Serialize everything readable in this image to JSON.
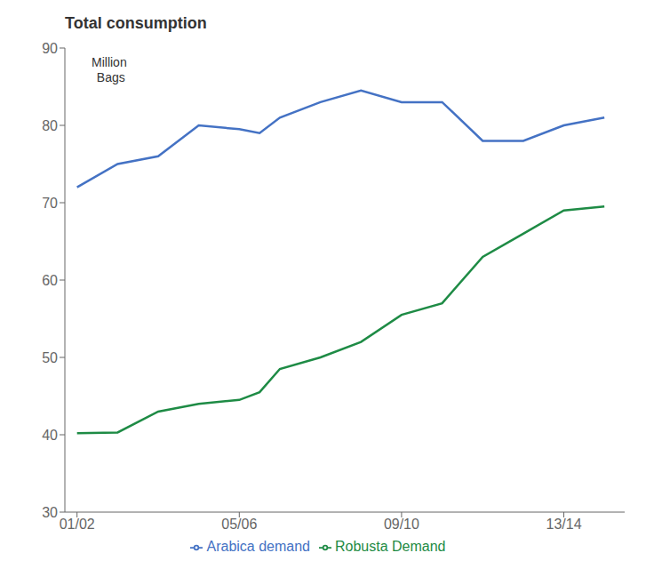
{
  "chart_data": {
    "type": "line",
    "title": "Total consumption",
    "annotations": [
      "Million\n Bags"
    ],
    "x": [
      0,
      1,
      2,
      3,
      4,
      4.5,
      5,
      6,
      7,
      8,
      9,
      10,
      11,
      12,
      13
    ],
    "series": [
      {
        "name": "Arabica demand",
        "color": "#4472C4",
        "values": [
          72,
          75,
          76,
          80,
          79.5,
          79,
          81,
          83,
          84.5,
          83,
          83,
          78,
          78,
          80,
          81
        ]
      },
      {
        "name": "Robusta Demand",
        "color": "#1E8B45",
        "values": [
          40.2,
          40.3,
          43,
          44,
          44.5,
          45.5,
          48.5,
          50,
          52,
          55.5,
          57,
          63,
          66,
          69,
          69.5
        ]
      }
    ],
    "xlim": [
      -0.3,
      13.5
    ],
    "xticks": [
      {
        "value": 0,
        "label": "01/02"
      },
      {
        "value": 4,
        "label": "05/06"
      },
      {
        "value": 8,
        "label": "09/10"
      },
      {
        "value": 12,
        "label": "13/14"
      }
    ],
    "ylim": [
      30,
      90
    ],
    "yticks": [
      30,
      40,
      50,
      60,
      70,
      80,
      90
    ],
    "grid": false,
    "legend": "bottom"
  }
}
